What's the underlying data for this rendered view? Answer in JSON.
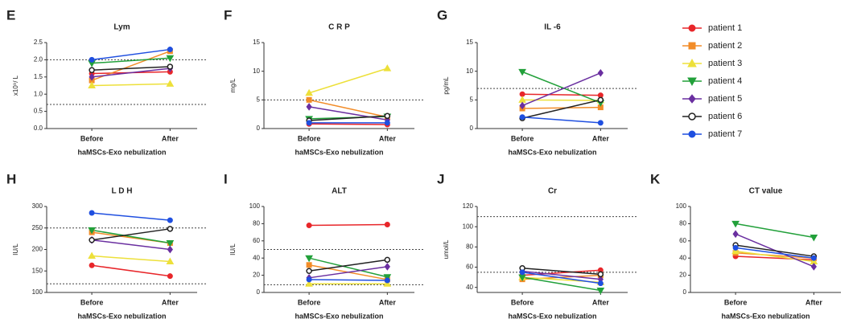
{
  "chart_data": [
    {
      "type": "line",
      "panel": "E",
      "title": "Lym",
      "y_label": "x10⁹/ L",
      "x_label": "haMSCs-Exo nebulization",
      "categories": [
        "Before",
        "After"
      ],
      "ylim": [
        0,
        2.5
      ],
      "yticks": [
        {
          "value": 0,
          "label": "0.0"
        },
        0.5,
        {
          "value": 1,
          "label": "1.0"
        },
        1.5,
        {
          "value": 2,
          "label": "2.0"
        },
        2.5
      ],
      "ref_lines": [
        2.0,
        0.7
      ],
      "series": [
        {
          "values": [
            1.6,
            1.65
          ]
        },
        {
          "values": [
            1.4,
            2.25
          ]
        },
        {
          "values": [
            1.25,
            1.3
          ]
        },
        {
          "values": [
            1.9,
            2.05
          ]
        },
        {
          "values": [
            1.5,
            1.75
          ]
        },
        {
          "values": [
            1.7,
            1.8
          ]
        },
        {
          "values": [
            2.0,
            2.3
          ]
        }
      ]
    },
    {
      "type": "line",
      "panel": "F",
      "title": "C R P",
      "y_label": "mg/L",
      "x_label": "haMSCs-Exo nebulization",
      "categories": [
        "Before",
        "After"
      ],
      "ylim": [
        0,
        15
      ],
      "yticks": [
        0,
        5,
        10,
        15
      ],
      "ref_lines": [
        5
      ],
      "series": [
        {
          "values": [
            0.8,
            0.7
          ]
        },
        {
          "values": [
            5,
            2
          ]
        },
        {
          "values": [
            6.2,
            10.5
          ]
        },
        {
          "values": [
            1.7,
            2.1
          ]
        },
        {
          "values": [
            3.8,
            1.5
          ]
        },
        {
          "values": [
            1.4,
            2.2
          ]
        },
        {
          "values": [
            1.0,
            1.0
          ]
        }
      ]
    },
    {
      "type": "line",
      "panel": "G",
      "title": "IL -6",
      "y_label": "pg/mL",
      "x_label": "haMSCs-Exo nebulization",
      "categories": [
        "Before",
        "After"
      ],
      "ylim": [
        0,
        15
      ],
      "yticks": [
        0,
        5,
        10,
        15
      ],
      "ref_lines": [
        7
      ],
      "series": [
        {
          "values": [
            6,
            5.8
          ]
        },
        {
          "values": [
            3.5,
            3.7
          ]
        },
        {
          "values": [
            5,
            4.9
          ]
        },
        {
          "values": [
            9.9,
            4.5
          ]
        },
        {
          "values": [
            4,
            9.7
          ]
        },
        {
          "values": [
            1.8,
            5.0
          ]
        },
        {
          "values": [
            2.0,
            1.0
          ]
        }
      ]
    },
    {
      "type": "line",
      "panel": "H",
      "title": "L D H",
      "y_label": "IU/L",
      "x_label": "haMSCs-Exo nebulization",
      "categories": [
        "Before",
        "After"
      ],
      "ylim": [
        100,
        300
      ],
      "yticks": [
        100,
        150,
        200,
        250,
        300
      ],
      "ref_lines": [
        250,
        120
      ],
      "series": [
        {
          "values": [
            163,
            138
          ]
        },
        {
          "values": [
            240,
            215
          ]
        },
        {
          "values": [
            185,
            172
          ]
        },
        {
          "values": [
            245,
            215
          ]
        },
        {
          "values": [
            222,
            200
          ]
        },
        {
          "values": [
            222,
            248
          ]
        },
        {
          "values": [
            285,
            268
          ]
        }
      ]
    },
    {
      "type": "line",
      "panel": "I",
      "title": "ALT",
      "y_label": "IU/L",
      "x_label": "haMSCs-Exo nebulization",
      "categories": [
        "Before",
        "After"
      ],
      "ylim": [
        0,
        100
      ],
      "yticks": [
        0,
        20,
        40,
        60,
        80,
        100
      ],
      "ref_lines": [
        50,
        9
      ],
      "series": [
        {
          "values": [
            78,
            79
          ]
        },
        {
          "values": [
            32,
            15
          ]
        },
        {
          "values": [
            10,
            10
          ]
        },
        {
          "values": [
            40,
            18
          ]
        },
        {
          "values": [
            17,
            30
          ]
        },
        {
          "values": [
            25,
            38
          ]
        },
        {
          "values": [
            15,
            14
          ]
        }
      ]
    },
    {
      "type": "line",
      "panel": "J",
      "title": "Cr",
      "y_label": "umol/L",
      "x_label": "haMSCs-Exo nebulization",
      "categories": [
        "Before",
        "After"
      ],
      "ylim": [
        35,
        120
      ],
      "yticks": [
        40,
        60,
        80,
        100,
        120
      ],
      "ref_lines": [
        110,
        55
      ],
      "series": [
        {
          "values": [
            52,
            57
          ]
        },
        {
          "values": [
            48,
            52
          ]
        },
        {
          "values": [
            50,
            45
          ]
        },
        {
          "values": [
            50,
            37
          ]
        },
        {
          "values": [
            56,
            48
          ]
        },
        {
          "values": [
            59,
            53
          ]
        },
        {
          "values": [
            55,
            44
          ]
        }
      ]
    },
    {
      "type": "line",
      "panel": "K",
      "title": "CT value",
      "x_label": "haMSCs-Exo nebulization",
      "categories": [
        "Before",
        "After"
      ],
      "ylim": [
        0,
        100
      ],
      "yticks": [
        0,
        20,
        40,
        60,
        80,
        100
      ],
      "series": [
        {
          "values": [
            42,
            38
          ]
        },
        {
          "values": [
            46,
            40
          ]
        },
        {
          "values": [
            48,
            36
          ]
        },
        {
          "values": [
            80,
            64
          ]
        },
        {
          "values": [
            68,
            30
          ]
        },
        {
          "values": [
            55,
            42
          ]
        },
        {
          "values": [
            52,
            40
          ]
        }
      ]
    }
  ],
  "legend": [
    {
      "name": "patient 1",
      "color": "#e8262a",
      "marker": "circle"
    },
    {
      "name": "patient 2",
      "color": "#f28c28",
      "marker": "square"
    },
    {
      "name": "patient 3",
      "color": "#ede03a",
      "marker": "triangle-up"
    },
    {
      "name": "patient 4",
      "color": "#22a03a",
      "marker": "triangle-down"
    },
    {
      "name": "patient 5",
      "color": "#6a2fa0",
      "marker": "diamond"
    },
    {
      "name": "patient 6",
      "color": "#222222",
      "marker": "open-circle"
    },
    {
      "name": "patient 7",
      "color": "#1f4fe0",
      "marker": "circle"
    }
  ]
}
